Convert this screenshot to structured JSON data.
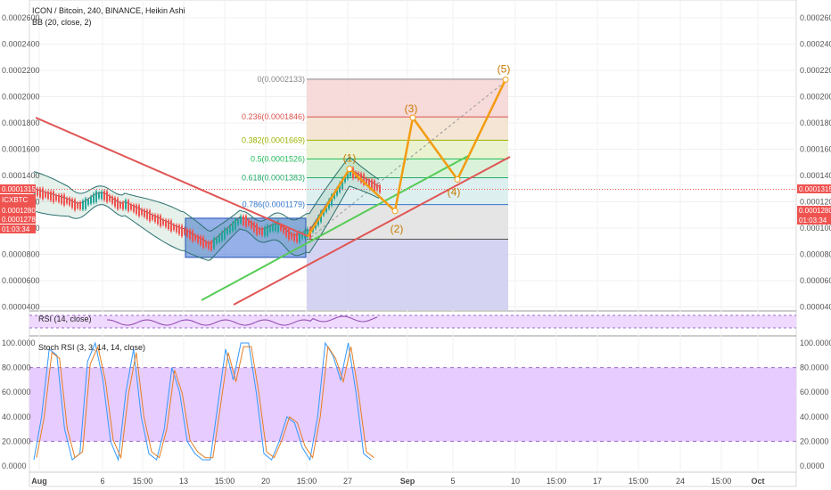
{
  "header": {
    "title": "ICON / Bitcoin, 240, BINANCE, Heikin Ashi",
    "bb_label": "BB (20, close, 2)"
  },
  "price_tags": {
    "symbol": "ICXBTC",
    "price": "0.0001315",
    "upper": "0.0001280",
    "lower": "0.0001278",
    "timer": "01:03:34"
  },
  "chart_data": [
    {
      "type": "line",
      "title": "ICON / Bitcoin, 240, BINANCE, Heikin Ashi",
      "ylim": [
        4e-05,
        0.00027
      ],
      "y_ticks": [
        "0.0002600",
        "0.0002400",
        "0.0002200",
        "0.0002000",
        "0.0001800",
        "0.0001600",
        "0.0001400",
        "0.0001200",
        "0.0001000",
        "0.0000800",
        "0.0000600",
        "0.0000400"
      ],
      "y_tick_values": [
        0.00026,
        0.00024,
        0.00022,
        0.0002,
        0.00018,
        0.00016,
        0.00014,
        0.00012,
        0.0001,
        8e-05,
        6e-05,
        4e-05
      ],
      "x_ticks": [
        "Aug",
        "6",
        "15:00",
        "13",
        "15:00",
        "20",
        "15:00",
        "27",
        "Sep",
        "5",
        "10",
        "15:00",
        "17",
        "15:00",
        "24",
        "15:00",
        "Oct"
      ],
      "last_price": 0.0001315,
      "fib_levels": [
        {
          "label": "0(0.0002133)",
          "value": 0.0002133,
          "color": "#888888",
          "fill": "#f6d4d4"
        },
        {
          "label": "0.236(0.0001846)",
          "value": 0.0001846,
          "color": "#d9534f",
          "fill": "#f3e0cc"
        },
        {
          "label": "0.382(0.0001669)",
          "value": 0.0001669,
          "color": "#9cb300",
          "fill": "#e6f0c8"
        },
        {
          "label": "0.5(0.0001526)",
          "value": 0.0001526,
          "color": "#22bb55",
          "fill": "#d4f0d4"
        },
        {
          "label": "0.618(0.0001383)",
          "value": 0.0001383,
          "color": "#22aa66",
          "fill": "#d8ecec"
        },
        {
          "label": "0.786(0.0001179)",
          "value": 0.0001179,
          "color": "#3377cc",
          "fill": "#e0e0e0"
        },
        {
          "label": "",
          "value": 9.15e-05,
          "color": "#555555",
          "fill": "#ccccf0"
        }
      ],
      "elliott_wave": {
        "labels": [
          "(1)",
          "(2)",
          "(3)",
          "(4)",
          "(5)"
        ],
        "points": [
          {
            "label": "(1)",
            "date": "Aug 26",
            "value": 0.000145
          },
          {
            "label": "(2)",
            "date": "Aug 30",
            "value": 0.000113
          },
          {
            "label": "(3)",
            "date": "Sep 1",
            "value": 0.000184
          },
          {
            "label": "(4)",
            "date": "Sep 4",
            "value": 0.000137
          },
          {
            "label": "(5)",
            "date": "Sep 7",
            "value": 0.000213
          }
        ],
        "color": "#f39c12"
      },
      "trendlines": [
        {
          "name": "",
          "color": "#e05555"
        },
        {
          "name": "",
          "color": "#55cc55"
        },
        {
          "name": "",
          "color": "#e05555"
        }
      ],
      "consolidation_box": {
        "from": "Aug 14",
        "to": "Aug 21",
        "top": 0.0001075,
        "bottom": 7.77e-05
      }
    },
    {
      "type": "line",
      "title": "RSI (14, close)",
      "y_ticks": [],
      "band": [
        30,
        70
      ]
    },
    {
      "type": "line",
      "title": "Stoch RSI (3, 3, 14, 14, close)",
      "ylim": [
        0,
        100
      ],
      "y_ticks": [
        "100.0000",
        "80.0000",
        "60.0000",
        "40.0000",
        "20.0000",
        "0.0000"
      ],
      "y_tick_values": [
        100,
        80,
        60,
        40,
        20,
        0
      ],
      "left_ticks": [
        "100.0000",
        "80.0000",
        "60.0000",
        "40.0000",
        "20.0000",
        "0.0000"
      ],
      "band": [
        20,
        80
      ],
      "series": [
        {
          "color": "#3399ff"
        },
        {
          "color": "#e67e22"
        }
      ]
    }
  ],
  "colors": {
    "bull": "#26a69a",
    "bear": "#ef5350",
    "wave": "#f39c12",
    "tag_red": "#ef5350",
    "stoch_fill": "#e6ccff",
    "rsi_fill": "#efd9ff"
  }
}
